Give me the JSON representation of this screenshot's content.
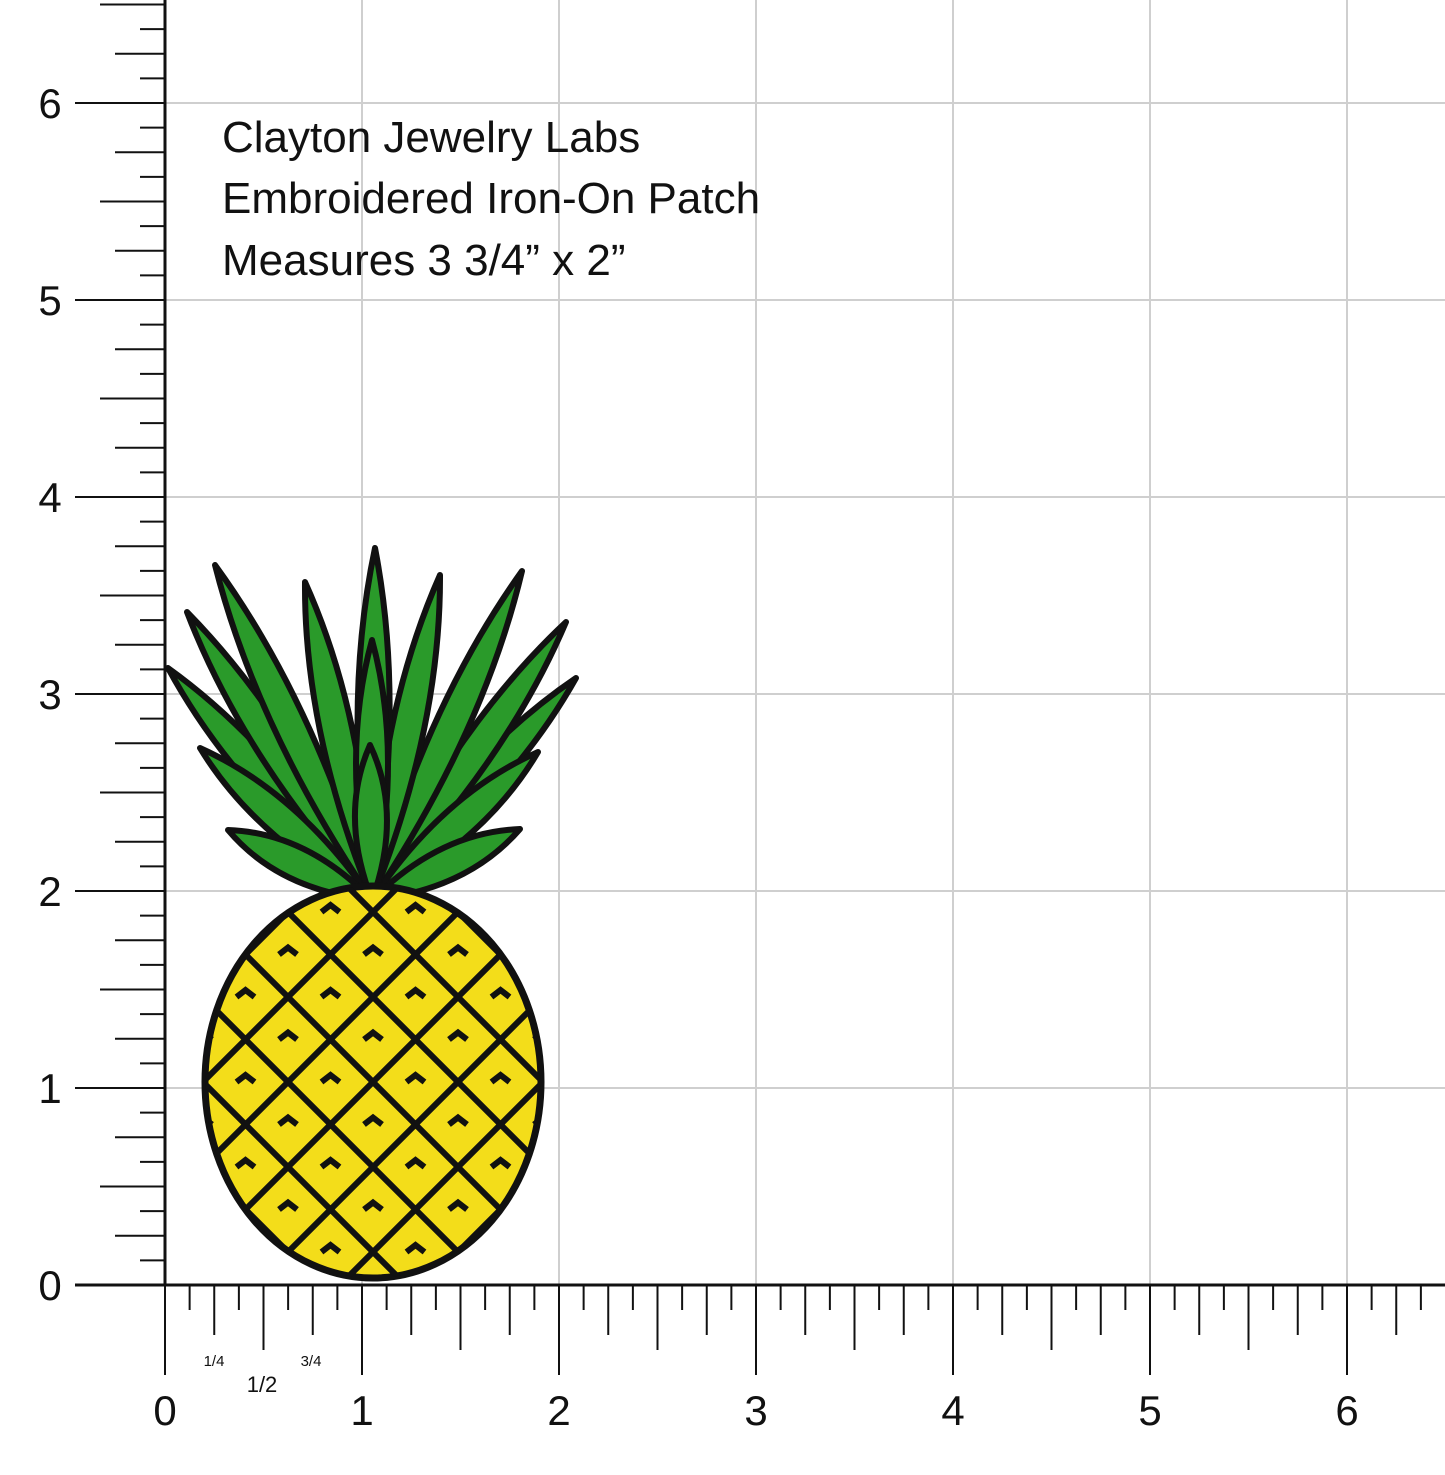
{
  "caption": [
    "Clayton Jewelry Labs",
    "Embroidered Iron-On Patch",
    "Measures 3 3/4” x 2”"
  ],
  "ruler": {
    "x_labels": [
      0,
      1,
      2,
      3,
      4,
      5,
      6
    ],
    "y_labels": [
      0,
      1,
      2,
      3,
      4,
      5,
      6
    ],
    "fractions": [
      "1/4",
      "1/2",
      "3/4"
    ]
  }
}
